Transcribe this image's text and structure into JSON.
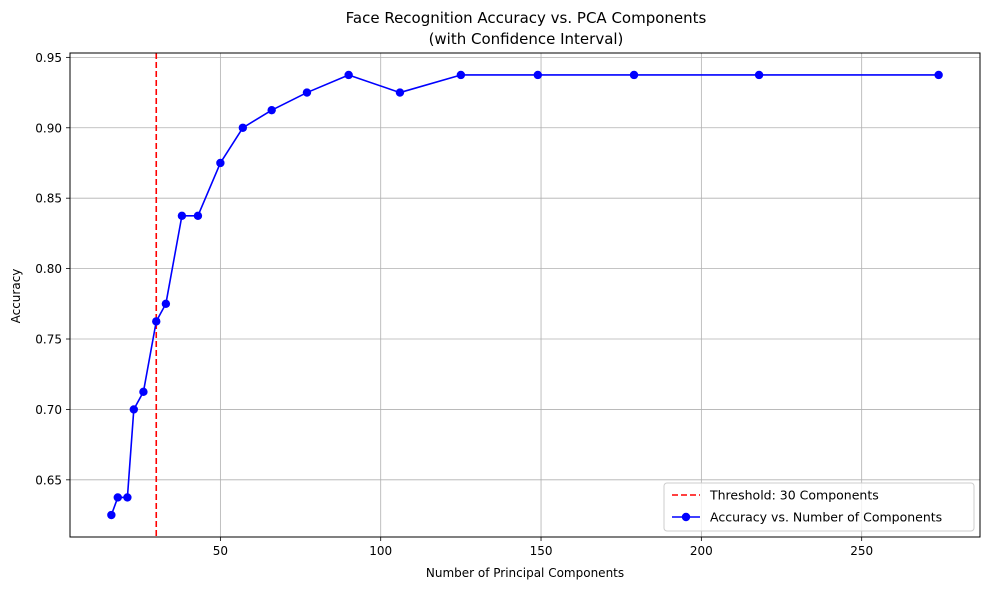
{
  "chart_data": {
    "type": "line",
    "title": "Face Recognition Accuracy vs. PCA Components",
    "subtitle": "(with Confidence Interval)",
    "xlabel": "Number of Principal Components",
    "ylabel": "Accuracy",
    "xlim": [
      3.1,
      286.9
    ],
    "ylim": [
      0.6094,
      0.9531
    ],
    "xticks": [
      50,
      100,
      150,
      200,
      250
    ],
    "yticks": [
      0.65,
      0.7,
      0.75,
      0.8,
      0.85,
      0.9,
      0.95
    ],
    "xtick_labels": [
      "50",
      "100",
      "150",
      "200",
      "250"
    ],
    "ytick_labels": [
      "0.65",
      "0.70",
      "0.75",
      "0.80",
      "0.85",
      "0.90",
      "0.95"
    ],
    "grid": true,
    "legend_position": "bottom-right",
    "series": [
      {
        "name": "Accuracy vs. Number of Components",
        "color": "#0000ff",
        "marker": "circle",
        "x": [
          16,
          18,
          21,
          23,
          26,
          30,
          33,
          38,
          43,
          50,
          57,
          66,
          77,
          90,
          106,
          125,
          149,
          179,
          218,
          274
        ],
        "y": [
          0.625,
          0.6375,
          0.6375,
          0.7,
          0.7125,
          0.7625,
          0.775,
          0.8375,
          0.8375,
          0.875,
          0.9,
          0.9125,
          0.925,
          0.9375,
          0.925,
          0.9375,
          0.9375,
          0.9375,
          0.9375,
          0.9375
        ]
      }
    ],
    "threshold": {
      "name": "Threshold: 30 Components",
      "x": 30,
      "color": "#ff0000",
      "style": "dashed"
    }
  }
}
